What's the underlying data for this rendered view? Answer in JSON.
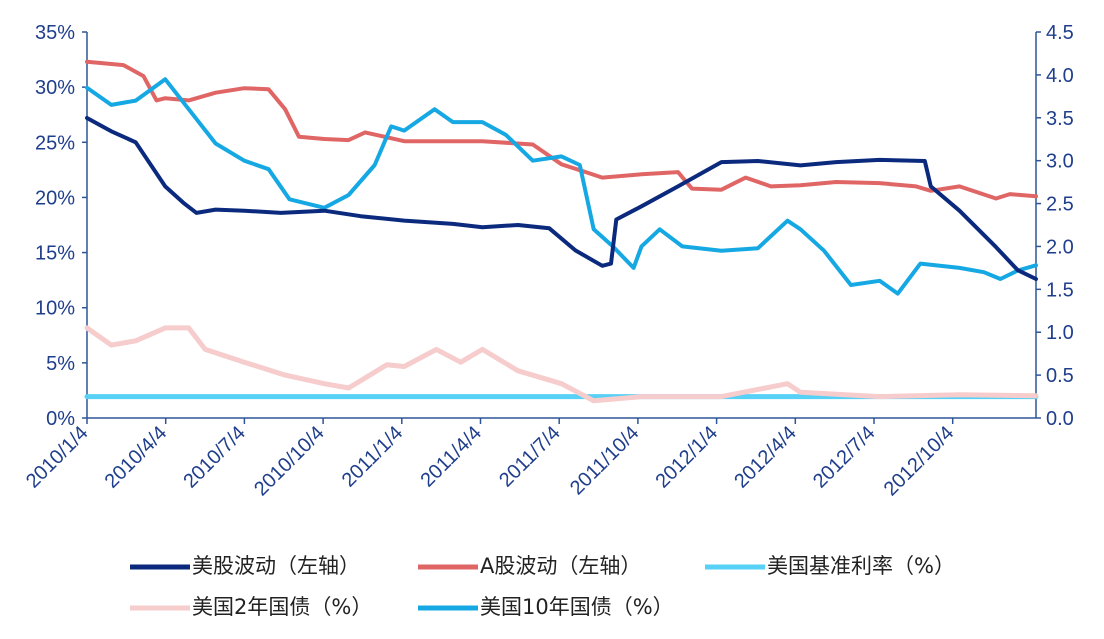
{
  "colors": {
    "axis": "#2f5597",
    "tick_text": "#1f3e8c",
    "us_vol": "#0b2a7e",
    "a_vol": "#e06666",
    "fed_rate": "#58d1f7",
    "us2y": "#f6cccc",
    "us10y": "#16a8e3"
  },
  "chart_data": {
    "type": "line",
    "x_tick_labels": [
      "2010/1/4",
      "2010/4/4",
      "2010/7/4",
      "2010/10/4",
      "2011/1/4",
      "2011/4/4",
      "2011/7/4",
      "2011/10/4",
      "2012/1/4",
      "2012/4/4",
      "2012/7/4",
      "2012/10/4"
    ],
    "x_range": [
      "2010-01-04",
      "2012-12-31"
    ],
    "y_left": {
      "ticks": [
        "0%",
        "5%",
        "10%",
        "15%",
        "20%",
        "25%",
        "30%",
        "35%"
      ],
      "range": [
        0,
        35
      ]
    },
    "y_right": {
      "ticks": [
        "0.0",
        "0.5",
        "1.0",
        "1.5",
        "2.0",
        "2.5",
        "3.0",
        "3.5",
        "4.0",
        "4.5"
      ],
      "range": [
        0,
        4.5
      ]
    },
    "series": [
      {
        "name": "美股波动（左轴）",
        "axis": "left",
        "color": "#0b2a7e",
        "points": [
          [
            "2010-01-04",
            27.2
          ],
          [
            "2010-02-01",
            26
          ],
          [
            "2010-03-01",
            25
          ],
          [
            "2010-04-04",
            21
          ],
          [
            "2010-04-25",
            19.5
          ],
          [
            "2010-05-10",
            18.6
          ],
          [
            "2010-06-01",
            18.9
          ],
          [
            "2010-07-04",
            18.8
          ],
          [
            "2010-08-15",
            18.6
          ],
          [
            "2010-10-04",
            18.8
          ],
          [
            "2010-11-15",
            18.3
          ],
          [
            "2011-01-04",
            17.9
          ],
          [
            "2011-03-01",
            17.6
          ],
          [
            "2011-04-04",
            17.3
          ],
          [
            "2011-05-15",
            17.5
          ],
          [
            "2011-06-20",
            17.2
          ],
          [
            "2011-07-20",
            15.2
          ],
          [
            "2011-08-20",
            13.8
          ],
          [
            "2011-08-30",
            14.0
          ],
          [
            "2011-09-05",
            18.0
          ],
          [
            "2011-10-04",
            19.2
          ],
          [
            "2011-11-15",
            21
          ],
          [
            "2012-01-04",
            23.2
          ],
          [
            "2012-02-15",
            23.3
          ],
          [
            "2012-04-04",
            22.9
          ],
          [
            "2012-05-15",
            23.2
          ],
          [
            "2012-07-04",
            23.4
          ],
          [
            "2012-08-25",
            23.3
          ],
          [
            "2012-09-01",
            21
          ],
          [
            "2012-10-04",
            18.8
          ],
          [
            "2012-11-15",
            15.5
          ],
          [
            "2012-12-10",
            13.4
          ],
          [
            "2012-12-31",
            12.6
          ]
        ]
      },
      {
        "name": "A股波动（左轴）",
        "axis": "left",
        "color": "#e06666",
        "points": [
          [
            "2010-01-04",
            32.3
          ],
          [
            "2010-02-15",
            32.0
          ],
          [
            "2010-03-10",
            31.0
          ],
          [
            "2010-03-25",
            28.8
          ],
          [
            "2010-04-04",
            29.0
          ],
          [
            "2010-05-01",
            28.8
          ],
          [
            "2010-06-01",
            29.5
          ],
          [
            "2010-07-04",
            29.9
          ],
          [
            "2010-08-01",
            29.8
          ],
          [
            "2010-08-20",
            28.0
          ],
          [
            "2010-09-05",
            25.5
          ],
          [
            "2010-10-04",
            25.3
          ],
          [
            "2010-11-01",
            25.2
          ],
          [
            "2010-11-20",
            25.9
          ],
          [
            "2011-01-04",
            25.1
          ],
          [
            "2011-04-04",
            25.1
          ],
          [
            "2011-06-01",
            24.8
          ],
          [
            "2011-07-04",
            23.0
          ],
          [
            "2011-08-01",
            22.3
          ],
          [
            "2011-08-20",
            21.8
          ],
          [
            "2011-10-04",
            22.1
          ],
          [
            "2011-11-15",
            22.3
          ],
          [
            "2011-12-01",
            20.8
          ],
          [
            "2012-01-04",
            20.7
          ],
          [
            "2012-02-01",
            21.8
          ],
          [
            "2012-03-01",
            21.0
          ],
          [
            "2012-04-04",
            21.1
          ],
          [
            "2012-05-15",
            21.4
          ],
          [
            "2012-07-04",
            21.3
          ],
          [
            "2012-08-15",
            21.0
          ],
          [
            "2012-09-01",
            20.6
          ],
          [
            "2012-10-04",
            21.0
          ],
          [
            "2012-11-15",
            19.9
          ],
          [
            "2012-12-01",
            20.3
          ],
          [
            "2012-12-31",
            20.1
          ]
        ]
      },
      {
        "name": "美国基准利率（%）",
        "axis": "right",
        "color": "#58d1f7",
        "points": [
          [
            "2010-01-04",
            0.25
          ],
          [
            "2012-12-31",
            0.25
          ]
        ]
      },
      {
        "name": "美国2年国债（%）",
        "axis": "right",
        "color": "#f6cccc",
        "points": [
          [
            "2010-01-04",
            1.05
          ],
          [
            "2010-02-01",
            0.85
          ],
          [
            "2010-03-01",
            0.9
          ],
          [
            "2010-04-04",
            1.05
          ],
          [
            "2010-05-01",
            1.05
          ],
          [
            "2010-05-20",
            0.8
          ],
          [
            "2010-07-04",
            0.65
          ],
          [
            "2010-08-20",
            0.5
          ],
          [
            "2010-10-04",
            0.4
          ],
          [
            "2010-11-01",
            0.35
          ],
          [
            "2010-12-15",
            0.62
          ],
          [
            "2011-01-04",
            0.6
          ],
          [
            "2011-02-10",
            0.8
          ],
          [
            "2011-03-10",
            0.65
          ],
          [
            "2011-04-04",
            0.8
          ],
          [
            "2011-05-15",
            0.55
          ],
          [
            "2011-07-04",
            0.4
          ],
          [
            "2011-08-10",
            0.2
          ],
          [
            "2011-10-04",
            0.25
          ],
          [
            "2012-01-04",
            0.25
          ],
          [
            "2012-03-20",
            0.4
          ],
          [
            "2012-04-04",
            0.3
          ],
          [
            "2012-07-04",
            0.25
          ],
          [
            "2012-10-04",
            0.27
          ],
          [
            "2012-12-31",
            0.26
          ]
        ]
      },
      {
        "name": "美国10年国债（%）",
        "axis": "right",
        "color": "#16a8e3",
        "points": [
          [
            "2010-01-04",
            3.85
          ],
          [
            "2010-02-01",
            3.65
          ],
          [
            "2010-03-01",
            3.7
          ],
          [
            "2010-04-04",
            3.95
          ],
          [
            "2010-05-01",
            3.6
          ],
          [
            "2010-06-01",
            3.2
          ],
          [
            "2010-07-04",
            3.0
          ],
          [
            "2010-08-01",
            2.9
          ],
          [
            "2010-08-25",
            2.55
          ],
          [
            "2010-10-04",
            2.45
          ],
          [
            "2010-11-01",
            2.6
          ],
          [
            "2010-12-01",
            2.95
          ],
          [
            "2010-12-20",
            3.4
          ],
          [
            "2011-01-04",
            3.35
          ],
          [
            "2011-02-08",
            3.6
          ],
          [
            "2011-03-01",
            3.45
          ],
          [
            "2011-04-04",
            3.45
          ],
          [
            "2011-05-01",
            3.3
          ],
          [
            "2011-06-01",
            3.0
          ],
          [
            "2011-07-04",
            3.05
          ],
          [
            "2011-07-25",
            2.95
          ],
          [
            "2011-08-10",
            2.2
          ],
          [
            "2011-09-01",
            2.0
          ],
          [
            "2011-09-25",
            1.75
          ],
          [
            "2011-10-04",
            2.0
          ],
          [
            "2011-10-25",
            2.2
          ],
          [
            "2011-11-20",
            2.0
          ],
          [
            "2012-01-04",
            1.95
          ],
          [
            "2012-02-15",
            1.98
          ],
          [
            "2012-03-20",
            2.3
          ],
          [
            "2012-04-04",
            2.2
          ],
          [
            "2012-05-01",
            1.95
          ],
          [
            "2012-06-01",
            1.55
          ],
          [
            "2012-07-04",
            1.6
          ],
          [
            "2012-07-25",
            1.45
          ],
          [
            "2012-08-20",
            1.8
          ],
          [
            "2012-10-04",
            1.75
          ],
          [
            "2012-11-01",
            1.7
          ],
          [
            "2012-11-20",
            1.62
          ],
          [
            "2012-12-10",
            1.72
          ],
          [
            "2012-12-31",
            1.78
          ]
        ]
      }
    ],
    "legend": {
      "placement": "bottom",
      "items": [
        "美股波动（左轴）",
        "A股波动（左轴）",
        "美国基准利率（%）",
        "美国2年国债（%）",
        "美国10年国债（%）"
      ]
    }
  }
}
